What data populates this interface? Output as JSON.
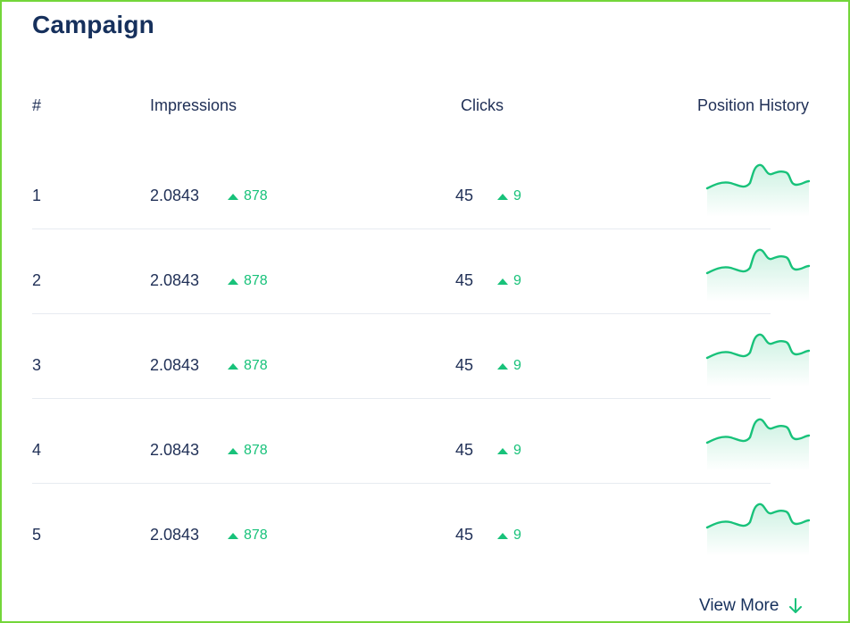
{
  "title": "Campaign",
  "columns": {
    "num": "#",
    "impressions": "Impressions",
    "clicks": "Clicks",
    "position_history": "Position History"
  },
  "rows": [
    {
      "num": "1",
      "impressions": "2.0843",
      "impressions_delta": "878",
      "clicks": "45",
      "clicks_delta": "9"
    },
    {
      "num": "2",
      "impressions": "2.0843",
      "impressions_delta": "878",
      "clicks": "45",
      "clicks_delta": "9"
    },
    {
      "num": "3",
      "impressions": "2.0843",
      "impressions_delta": "878",
      "clicks": "45",
      "clicks_delta": "9"
    },
    {
      "num": "4",
      "impressions": "2.0843",
      "impressions_delta": "878",
      "clicks": "45",
      "clicks_delta": "9"
    },
    {
      "num": "5",
      "impressions": "2.0843",
      "impressions_delta": "878",
      "clicks": "45",
      "clicks_delta": "9"
    }
  ],
  "footer": {
    "view_more": "View More",
    "view_more_icon": "arrow-down-icon"
  },
  "colors": {
    "accent_green": "#18c27a",
    "text_navy": "#1f2f56",
    "frame_green": "#73d63a"
  }
}
